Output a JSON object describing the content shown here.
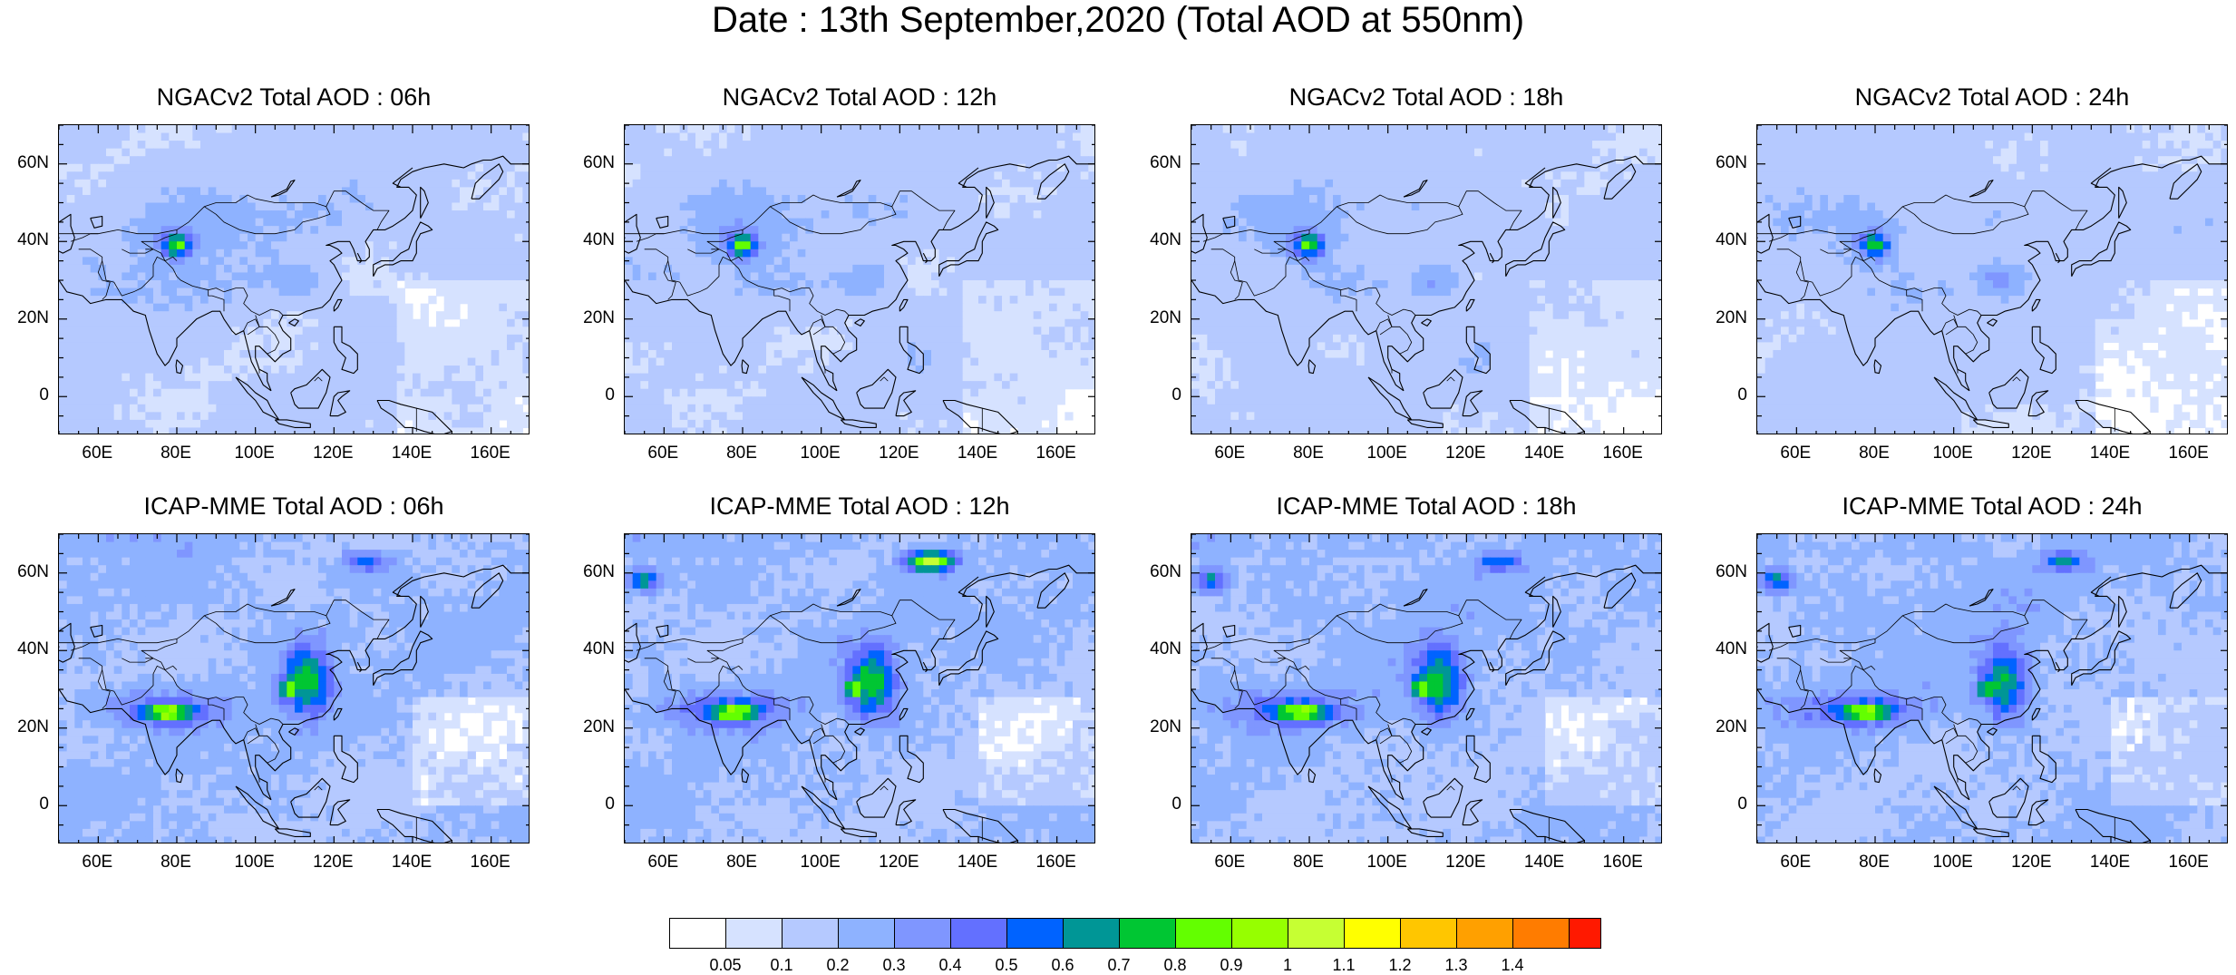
{
  "title": "Date : 13th September,2020 (Total AOD at 550nm)",
  "panels": [
    {
      "title": "NGACv2 Total AOD : 06h",
      "model": "ngac",
      "hour": 6
    },
    {
      "title": "NGACv2 Total AOD : 12h",
      "model": "ngac",
      "hour": 12
    },
    {
      "title": "NGACv2 Total AOD : 18h",
      "model": "ngac",
      "hour": 18
    },
    {
      "title": "NGACv2 Total AOD : 24h",
      "model": "ngac",
      "hour": 24
    },
    {
      "title": "ICAP-MME Total AOD : 06h",
      "model": "icap",
      "hour": 6
    },
    {
      "title": "ICAP-MME Total AOD : 12h",
      "model": "icap",
      "hour": 12
    },
    {
      "title": "ICAP-MME Total AOD : 18h",
      "model": "icap",
      "hour": 18
    },
    {
      "title": "ICAP-MME Total AOD : 24h",
      "model": "icap",
      "hour": 24
    }
  ],
  "map": {
    "lon_range": [
      50,
      170
    ],
    "lat_range": [
      -10,
      70
    ],
    "lat_ticks": [
      "60N",
      "40N",
      "20N",
      "0"
    ],
    "lon_ticks": [
      "60E",
      "80E",
      "100E",
      "120E",
      "140E",
      "160E"
    ]
  },
  "colorbar": {
    "labels": [
      "0.05",
      "0.1",
      "0.2",
      "0.3",
      "0.4",
      "0.5",
      "0.6",
      "0.7",
      "0.8",
      "0.9",
      "1",
      "1.1",
      "1.2",
      "1.3",
      "1.4"
    ],
    "colors": [
      "#ffffff",
      "#d6e2ff",
      "#b5c9ff",
      "#8eb2ff",
      "#7f96ff",
      "#6370ff",
      "#0063ff",
      "#009696",
      "#00c633",
      "#63ff00",
      "#96ff00",
      "#c6ff33",
      "#ffff00",
      "#ffc600",
      "#ffa000",
      "#ff7c00",
      "#ff1900"
    ]
  }
}
